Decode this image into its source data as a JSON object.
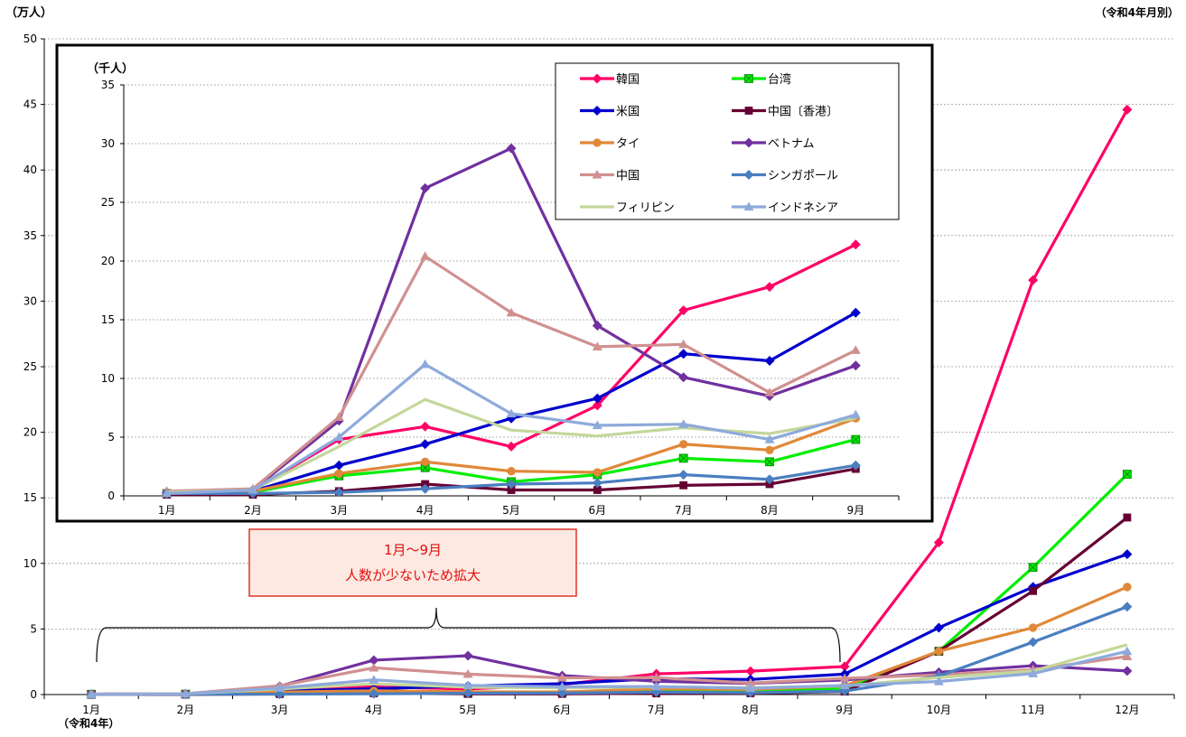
{
  "chart_data": [
    {
      "type": "line",
      "ylabel": "（万人）",
      "note": "（令和4年月別）",
      "xlabel": "（令和4年）",
      "categories": [
        "1月",
        "2月",
        "3月",
        "4月",
        "5月",
        "6月",
        "7月",
        "8月",
        "9月",
        "10月",
        "11月",
        "12月"
      ],
      "ylim": [
        0,
        50
      ],
      "yticks": [
        0,
        5,
        10,
        15,
        20,
        25,
        30,
        35,
        40,
        45,
        50
      ],
      "grid": true,
      "series": [
        {
          "name": "韓国",
          "color": "#ff0066",
          "marker": "diamond",
          "values": [
            0.02,
            0.05,
            0.48,
            0.59,
            0.42,
            0.77,
            1.58,
            1.78,
            2.14,
            11.6,
            31.6,
            44.6
          ]
        },
        {
          "name": "台湾",
          "color": "#00ee00",
          "marker": "square-x",
          "values": [
            0.02,
            0.03,
            0.17,
            0.24,
            0.12,
            0.18,
            0.32,
            0.29,
            0.48,
            3.3,
            9.7,
            16.8
          ]
        },
        {
          "name": "米国",
          "color": "#0000cc",
          "marker": "diamond",
          "values": [
            0.03,
            0.04,
            0.26,
            0.44,
            0.66,
            0.83,
            1.21,
            1.15,
            1.56,
            5.1,
            8.2,
            10.7
          ]
        },
        {
          "name": "中国〔香港〕",
          "color": "#660033",
          "marker": "square",
          "values": [
            0.01,
            0.01,
            0.04,
            0.1,
            0.05,
            0.05,
            0.09,
            0.1,
            0.23,
            3.3,
            7.9,
            13.5
          ]
        },
        {
          "name": "タイ",
          "color": "#e08838",
          "marker": "circle",
          "values": [
            0.03,
            0.04,
            0.19,
            0.29,
            0.21,
            0.2,
            0.44,
            0.39,
            0.66,
            3.3,
            5.1,
            8.2
          ]
        },
        {
          "name": "ベトナム",
          "color": "#7030a0",
          "marker": "diamond",
          "values": [
            0.03,
            0.05,
            0.64,
            2.62,
            2.96,
            1.45,
            1.01,
            0.85,
            1.11,
            1.7,
            2.2,
            1.8
          ]
        },
        {
          "name": "中国",
          "color": "#d09090",
          "marker": "triangle",
          "values": [
            0.04,
            0.06,
            0.67,
            2.04,
            1.56,
            1.27,
            1.29,
            0.88,
            1.24,
            1.5,
            1.9,
            2.9
          ]
        },
        {
          "name": "シンガポール",
          "color": "#4a7ec0",
          "marker": "diamond",
          "values": [
            0.02,
            0.02,
            0.03,
            0.06,
            0.1,
            0.11,
            0.18,
            0.14,
            0.26,
            1.4,
            4.0,
            6.7
          ]
        },
        {
          "name": "フィリピン",
          "color": "#c4d79b",
          "marker": "none",
          "values": [
            0.03,
            0.05,
            0.42,
            0.82,
            0.56,
            0.51,
            0.58,
            0.53,
            0.66,
            1.3,
            1.8,
            3.8
          ]
        },
        {
          "name": "インドネシア",
          "color": "#8eaadb",
          "marker": "triangle",
          "values": [
            0.02,
            0.05,
            0.5,
            1.12,
            0.7,
            0.6,
            0.61,
            0.48,
            0.69,
            1.0,
            1.6,
            3.3
          ]
        }
      ]
    },
    {
      "type": "line",
      "ylabel": "（千人）",
      "categories": [
        "1月",
        "2月",
        "3月",
        "4月",
        "5月",
        "6月",
        "7月",
        "8月",
        "9月"
      ],
      "ylim": [
        0,
        35
      ],
      "yticks": [
        0,
        5,
        10,
        15,
        20,
        25,
        30,
        35
      ],
      "grid": true,
      "legend_position": "top-right"
    }
  ],
  "annotation": {
    "line1": "1月～9月",
    "line2": "人数が少ないため拡大"
  }
}
